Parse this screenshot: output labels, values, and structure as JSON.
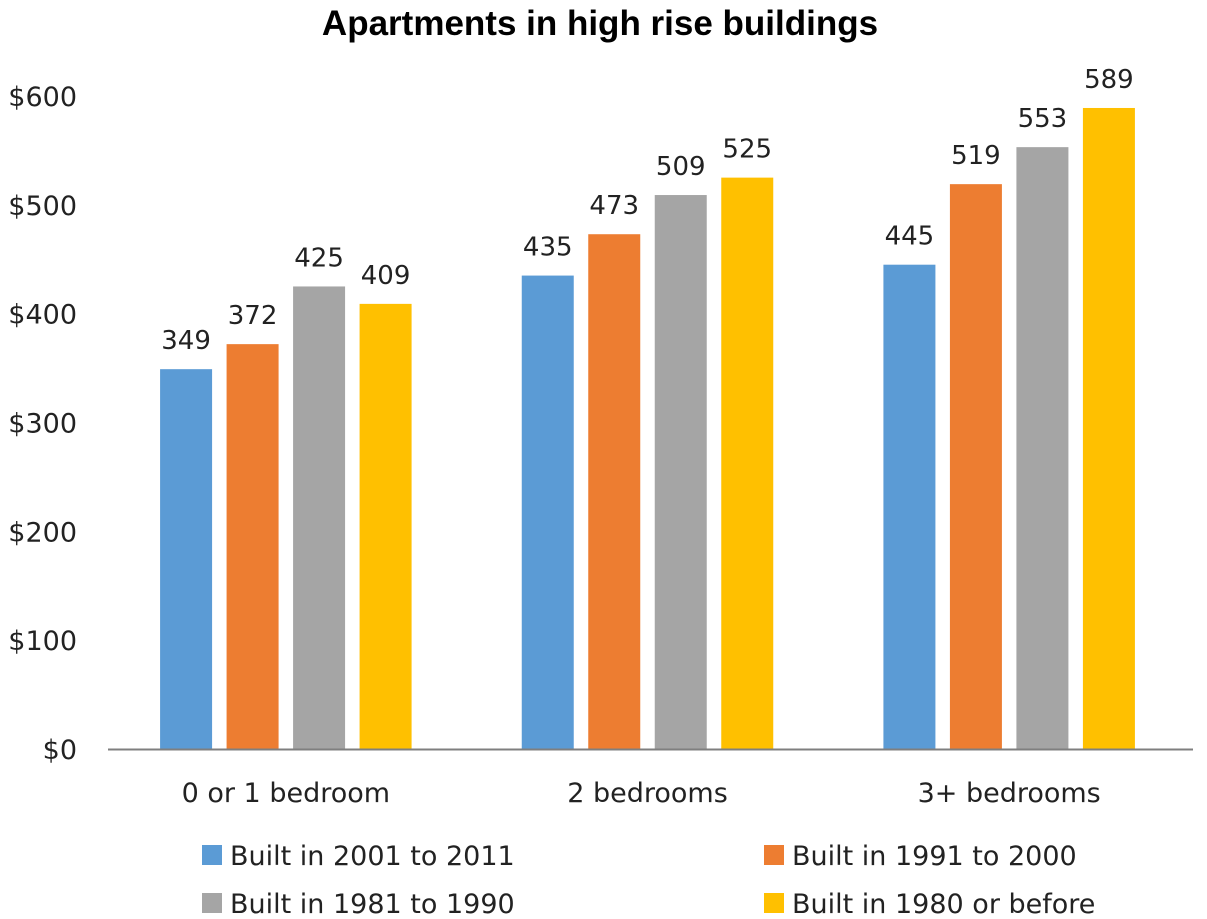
{
  "chart_data": {
    "type": "bar",
    "title": "Apartments in high rise buildings",
    "categories": [
      "0 or 1 bedroom",
      "2 bedrooms",
      "3+ bedrooms"
    ],
    "series": [
      {
        "name": "Built in 2001 to 2011",
        "color": "#5B9BD5",
        "values": [
          349,
          435,
          445
        ]
      },
      {
        "name": "Built in 1991 to 2000",
        "color": "#ED7D31",
        "values": [
          372,
          473,
          519
        ]
      },
      {
        "name": "Built in 1981 to 1990",
        "color": "#A5A5A5",
        "values": [
          425,
          509,
          553
        ]
      },
      {
        "name": "Built in 1980 or before",
        "color": "#FFC000",
        "values": [
          409,
          525,
          589
        ]
      }
    ],
    "yticks": [
      "$0",
      "$100",
      "$200",
      "$300",
      "$400",
      "$500",
      "$600"
    ],
    "ylim": [
      0,
      600
    ],
    "grid": false,
    "legend_position": "bottom"
  }
}
